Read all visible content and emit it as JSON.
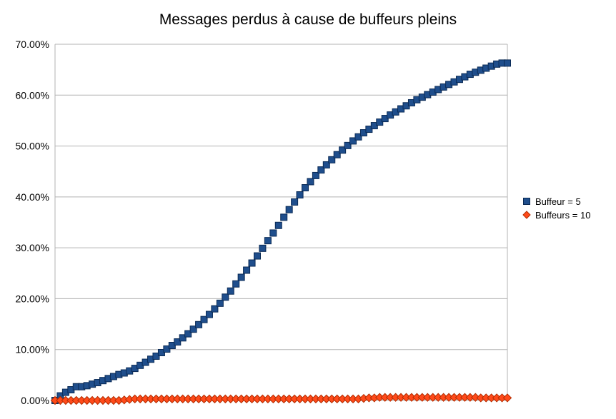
{
  "chart_data": {
    "type": "line",
    "title": "Messages perdus à cause de buffeurs pleins",
    "xlabel": "",
    "ylabel": "",
    "ylim": [
      0,
      0.7
    ],
    "yticks": [
      "0.00%",
      "10.00%",
      "20.00%",
      "30.00%",
      "40.00%",
      "50.00%",
      "60.00%",
      "70.00%"
    ],
    "grid": true,
    "legend_position": "right",
    "series": [
      {
        "name": "Buffeur = 5",
        "color": "#1f4e8c",
        "marker": "square",
        "values": [
          0.0,
          0.009,
          0.016,
          0.021,
          0.027,
          0.027,
          0.029,
          0.032,
          0.035,
          0.039,
          0.043,
          0.047,
          0.051,
          0.054,
          0.058,
          0.063,
          0.069,
          0.075,
          0.081,
          0.087,
          0.094,
          0.101,
          0.108,
          0.115,
          0.123,
          0.131,
          0.14,
          0.149,
          0.159,
          0.169,
          0.18,
          0.191,
          0.203,
          0.215,
          0.229,
          0.242,
          0.256,
          0.27,
          0.284,
          0.299,
          0.314,
          0.329,
          0.344,
          0.36,
          0.375,
          0.39,
          0.404,
          0.418,
          0.43,
          0.442,
          0.453,
          0.463,
          0.473,
          0.483,
          0.492,
          0.501,
          0.51,
          0.518,
          0.526,
          0.533,
          0.54,
          0.547,
          0.554,
          0.561,
          0.567,
          0.573,
          0.579,
          0.585,
          0.591,
          0.596,
          0.601,
          0.606,
          0.611,
          0.616,
          0.621,
          0.626,
          0.631,
          0.636,
          0.641,
          0.645,
          0.649,
          0.653,
          0.657,
          0.661,
          0.663,
          0.663
        ]
      },
      {
        "name": "Buffeurs = 10",
        "color": "#ff4a1a",
        "marker": "diamond",
        "values": [
          0.0,
          0.0,
          0.0,
          0.0,
          0.0,
          0.0,
          0.0,
          0.0,
          0.0,
          0.0,
          0.0,
          0.0,
          0.0,
          0.001,
          0.002,
          0.003,
          0.003,
          0.003,
          0.003,
          0.003,
          0.003,
          0.003,
          0.003,
          0.003,
          0.003,
          0.003,
          0.003,
          0.003,
          0.003,
          0.003,
          0.003,
          0.003,
          0.003,
          0.003,
          0.003,
          0.003,
          0.003,
          0.003,
          0.003,
          0.003,
          0.003,
          0.003,
          0.003,
          0.003,
          0.003,
          0.003,
          0.003,
          0.003,
          0.003,
          0.003,
          0.003,
          0.003,
          0.003,
          0.003,
          0.003,
          0.003,
          0.003,
          0.003,
          0.004,
          0.005,
          0.005,
          0.006,
          0.006,
          0.006,
          0.006,
          0.006,
          0.006,
          0.006,
          0.006,
          0.006,
          0.006,
          0.006,
          0.006,
          0.006,
          0.006,
          0.006,
          0.006,
          0.006,
          0.006,
          0.006,
          0.005,
          0.005,
          0.005,
          0.005,
          0.005,
          0.005
        ]
      }
    ]
  }
}
